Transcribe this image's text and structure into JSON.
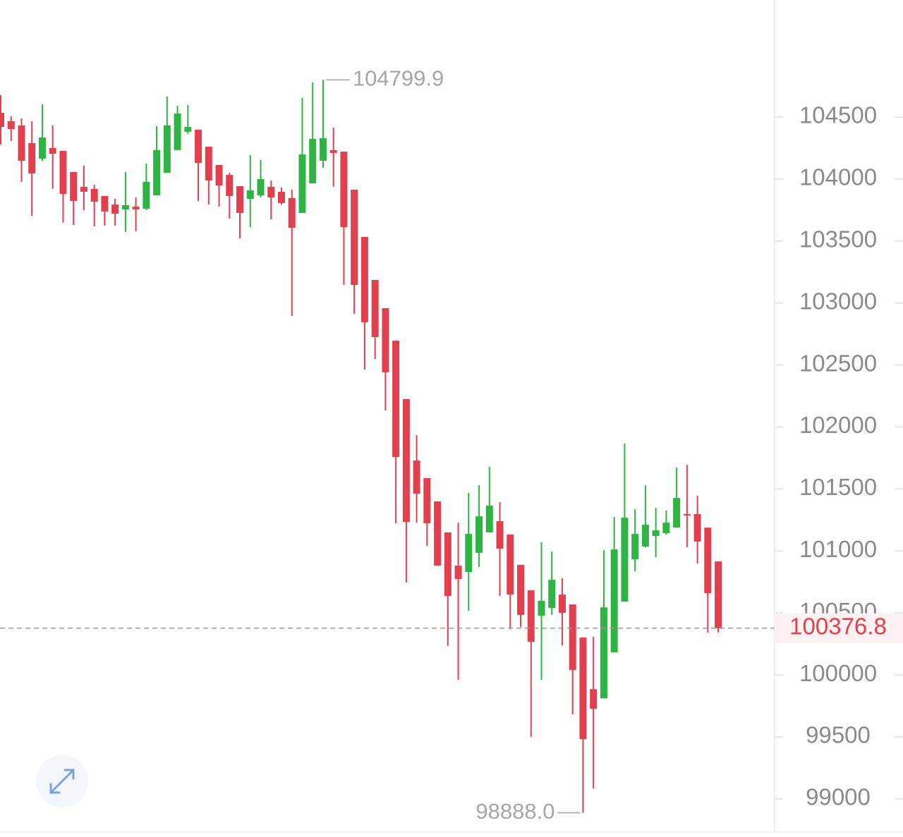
{
  "chart_data": {
    "type": "candlestick",
    "open": [
      104534,
      104466,
      104432,
      104289,
      104164,
      104250,
      104227,
      104056,
      103937,
      103920,
      103863,
      103794,
      103755,
      103777,
      103760,
      103868,
      104050,
      104233,
      104381,
      104398,
      104261,
      104113,
      104033,
      103942,
      103840,
      103868,
      103937,
      103897,
      103846,
      103726,
      103965,
      104147,
      104233,
      104221,
      103914,
      103533,
      103186,
      102958,
      102696,
      102224,
      101729,
      101587,
      101399,
      101149,
      100881,
      100830,
      100984,
      101149,
      101240,
      101132,
      100887,
      100682,
      100477,
      100540,
      100648,
      100568,
      100301,
      99885,
      99811,
      100181,
      100591,
      100932,
      101035,
      101120,
      101143,
      101188,
      101297,
      101297,
      101188,
      100915
    ],
    "high": [
      104676,
      104506,
      104489,
      104466,
      104602,
      104432,
      104227,
      104056,
      104107,
      103954,
      103863,
      103840,
      104056,
      103851,
      104124,
      104426,
      104665,
      104591,
      104597,
      104398,
      104261,
      104113,
      104050,
      103942,
      104193,
      104153,
      103988,
      103931,
      103914,
      104654,
      104779,
      104799.9,
      104415,
      104221,
      103914,
      103533,
      103186,
      102958,
      102696,
      102224,
      101934,
      101587,
      101399,
      101149,
      101228,
      101467,
      101530,
      101678,
      101393,
      101132,
      100887,
      100682,
      101069,
      100995,
      100779,
      100568,
      100301,
      100307,
      101006,
      101274,
      101866,
      101336,
      101530,
      101348,
      101325,
      101672,
      101695,
      101444,
      101188,
      100915
    ],
    "low": [
      104278,
      104307,
      103977,
      103703,
      104147,
      103920,
      103647,
      103629,
      103749,
      103618,
      103624,
      103624,
      103573,
      103578,
      103749,
      103868,
      104050,
      104233,
      104363,
      103823,
      103794,
      103777,
      103681,
      103521,
      103612,
      103851,
      103675,
      103794,
      102895,
      103726,
      103965,
      104090,
      103937,
      103146,
      102913,
      102463,
      102548,
      102133,
      101223,
      100745,
      101228,
      101040,
      100881,
      100233,
      99959,
      100517,
      100870,
      101149,
      100637,
      100369,
      100386,
      99499,
      99959,
      100483,
      100238,
      99681,
      98888,
      99083,
      99811,
      100181,
      100591,
      100836,
      101029,
      100949,
      101132,
      101188,
      101029,
      100898,
      100341,
      100341
    ],
    "close": [
      104420,
      104403,
      104147,
      104045,
      104335,
      104204,
      103880,
      103823,
      103897,
      103817,
      103738,
      103720,
      103789,
      103755,
      103977,
      104233,
      104432,
      104528,
      104420,
      104130,
      103988,
      103948,
      103863,
      103726,
      103908,
      103999,
      103851,
      103806,
      103607,
      104198,
      104324,
      104329,
      104210,
      103612,
      103146,
      102844,
      102725,
      102440,
      101757,
      101234,
      101462,
      101223,
      100881,
      100637,
      100773,
      101137,
      101279,
      101365,
      101018,
      100648,
      100483,
      100267,
      100597,
      100767,
      100500,
      100039,
      99481,
      99726,
      100545,
      101012,
      101268,
      101137,
      101211,
      101166,
      101228,
      101427,
      101291,
      101075,
      100659,
      100376.8
    ],
    "up_color": "#2fb344",
    "down_color": "#e2404f",
    "ylim": [
      98732,
      105444
    ],
    "yticks": [
      99000,
      99500,
      100000,
      100500,
      101000,
      101500,
      102000,
      102500,
      103000,
      103500,
      104000,
      104500
    ],
    "high_label": "104799.9",
    "low_label": "98888.0",
    "last_price_label": "100376.8"
  }
}
